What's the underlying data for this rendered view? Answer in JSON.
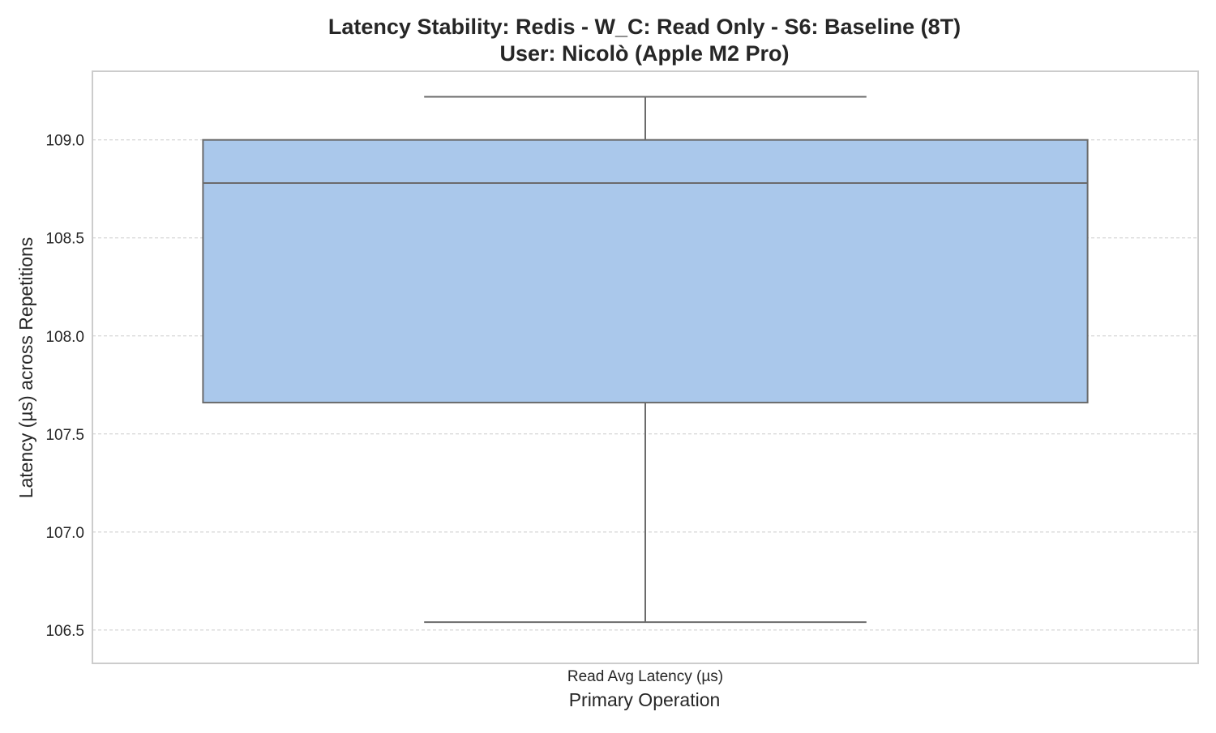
{
  "chart_data": {
    "type": "box",
    "title_line1": "Latency Stability: Redis - W_C: Read Only - S6: Baseline (8T)",
    "title_line2": "User: Nicolò (Apple M2 Pro)",
    "xlabel": "Primary Operation",
    "ylabel": "Latency (µs) across Repetitions",
    "ylim": [
      106.33,
      109.35
    ],
    "y_ticks": [
      "106.5",
      "107.0",
      "107.5",
      "108.0",
      "108.5",
      "109.0"
    ],
    "grid": true,
    "categories": [
      "Read Avg Latency (µs)"
    ],
    "boxes": [
      {
        "category": "Read Avg Latency (µs)",
        "whisker_low": 106.54,
        "q1": 107.66,
        "median": 108.78,
        "q3": 109.0,
        "whisker_high": 109.22,
        "color": "#aac8eb"
      }
    ],
    "colors": {
      "box_fill": "#aac8eb",
      "box_edge": "#6b6b6b",
      "grid": "#cccccc",
      "frame": "#cccccc"
    }
  }
}
